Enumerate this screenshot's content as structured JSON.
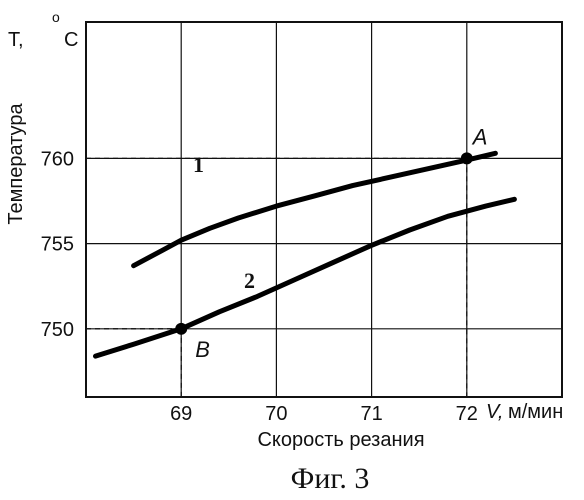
{
  "chart_data": {
    "type": "line",
    "title": "",
    "xlabel": "Скорость резания",
    "x_unit_label": "м/мин",
    "x_symbol": "V,",
    "ylabel": "Температура",
    "y_unit_prefix": "T,",
    "y_unit_deg": "o",
    "y_unit_letter": "C",
    "xlim": [
      68,
      73
    ],
    "ylim": [
      746,
      768
    ],
    "x_ticks": [
      69,
      70,
      71,
      72
    ],
    "y_ticks": [
      750,
      755,
      760
    ],
    "grid": true,
    "series": [
      {
        "name": "1",
        "x": [
          68.5,
          68.8,
          69.0,
          69.3,
          69.6,
          70.0,
          70.4,
          70.8,
          71.2,
          71.6,
          72.0,
          72.3
        ],
        "y": [
          753.7,
          754.6,
          755.2,
          755.9,
          756.5,
          757.2,
          757.8,
          758.4,
          758.9,
          759.4,
          759.9,
          760.3
        ]
      },
      {
        "name": "2",
        "x": [
          68.1,
          68.5,
          69.0,
          69.4,
          69.8,
          70.2,
          70.6,
          71.0,
          71.4,
          71.8,
          72.2,
          72.5
        ],
        "y": [
          748.4,
          749.1,
          750.0,
          751.0,
          751.9,
          752.9,
          753.9,
          754.9,
          755.8,
          756.6,
          757.2,
          757.6
        ]
      }
    ],
    "annotations": [
      {
        "label": "A",
        "x": 72.0,
        "y": 760
      },
      {
        "label": "B",
        "x": 69.0,
        "y": 750
      }
    ]
  },
  "caption": "Фиг. 3"
}
